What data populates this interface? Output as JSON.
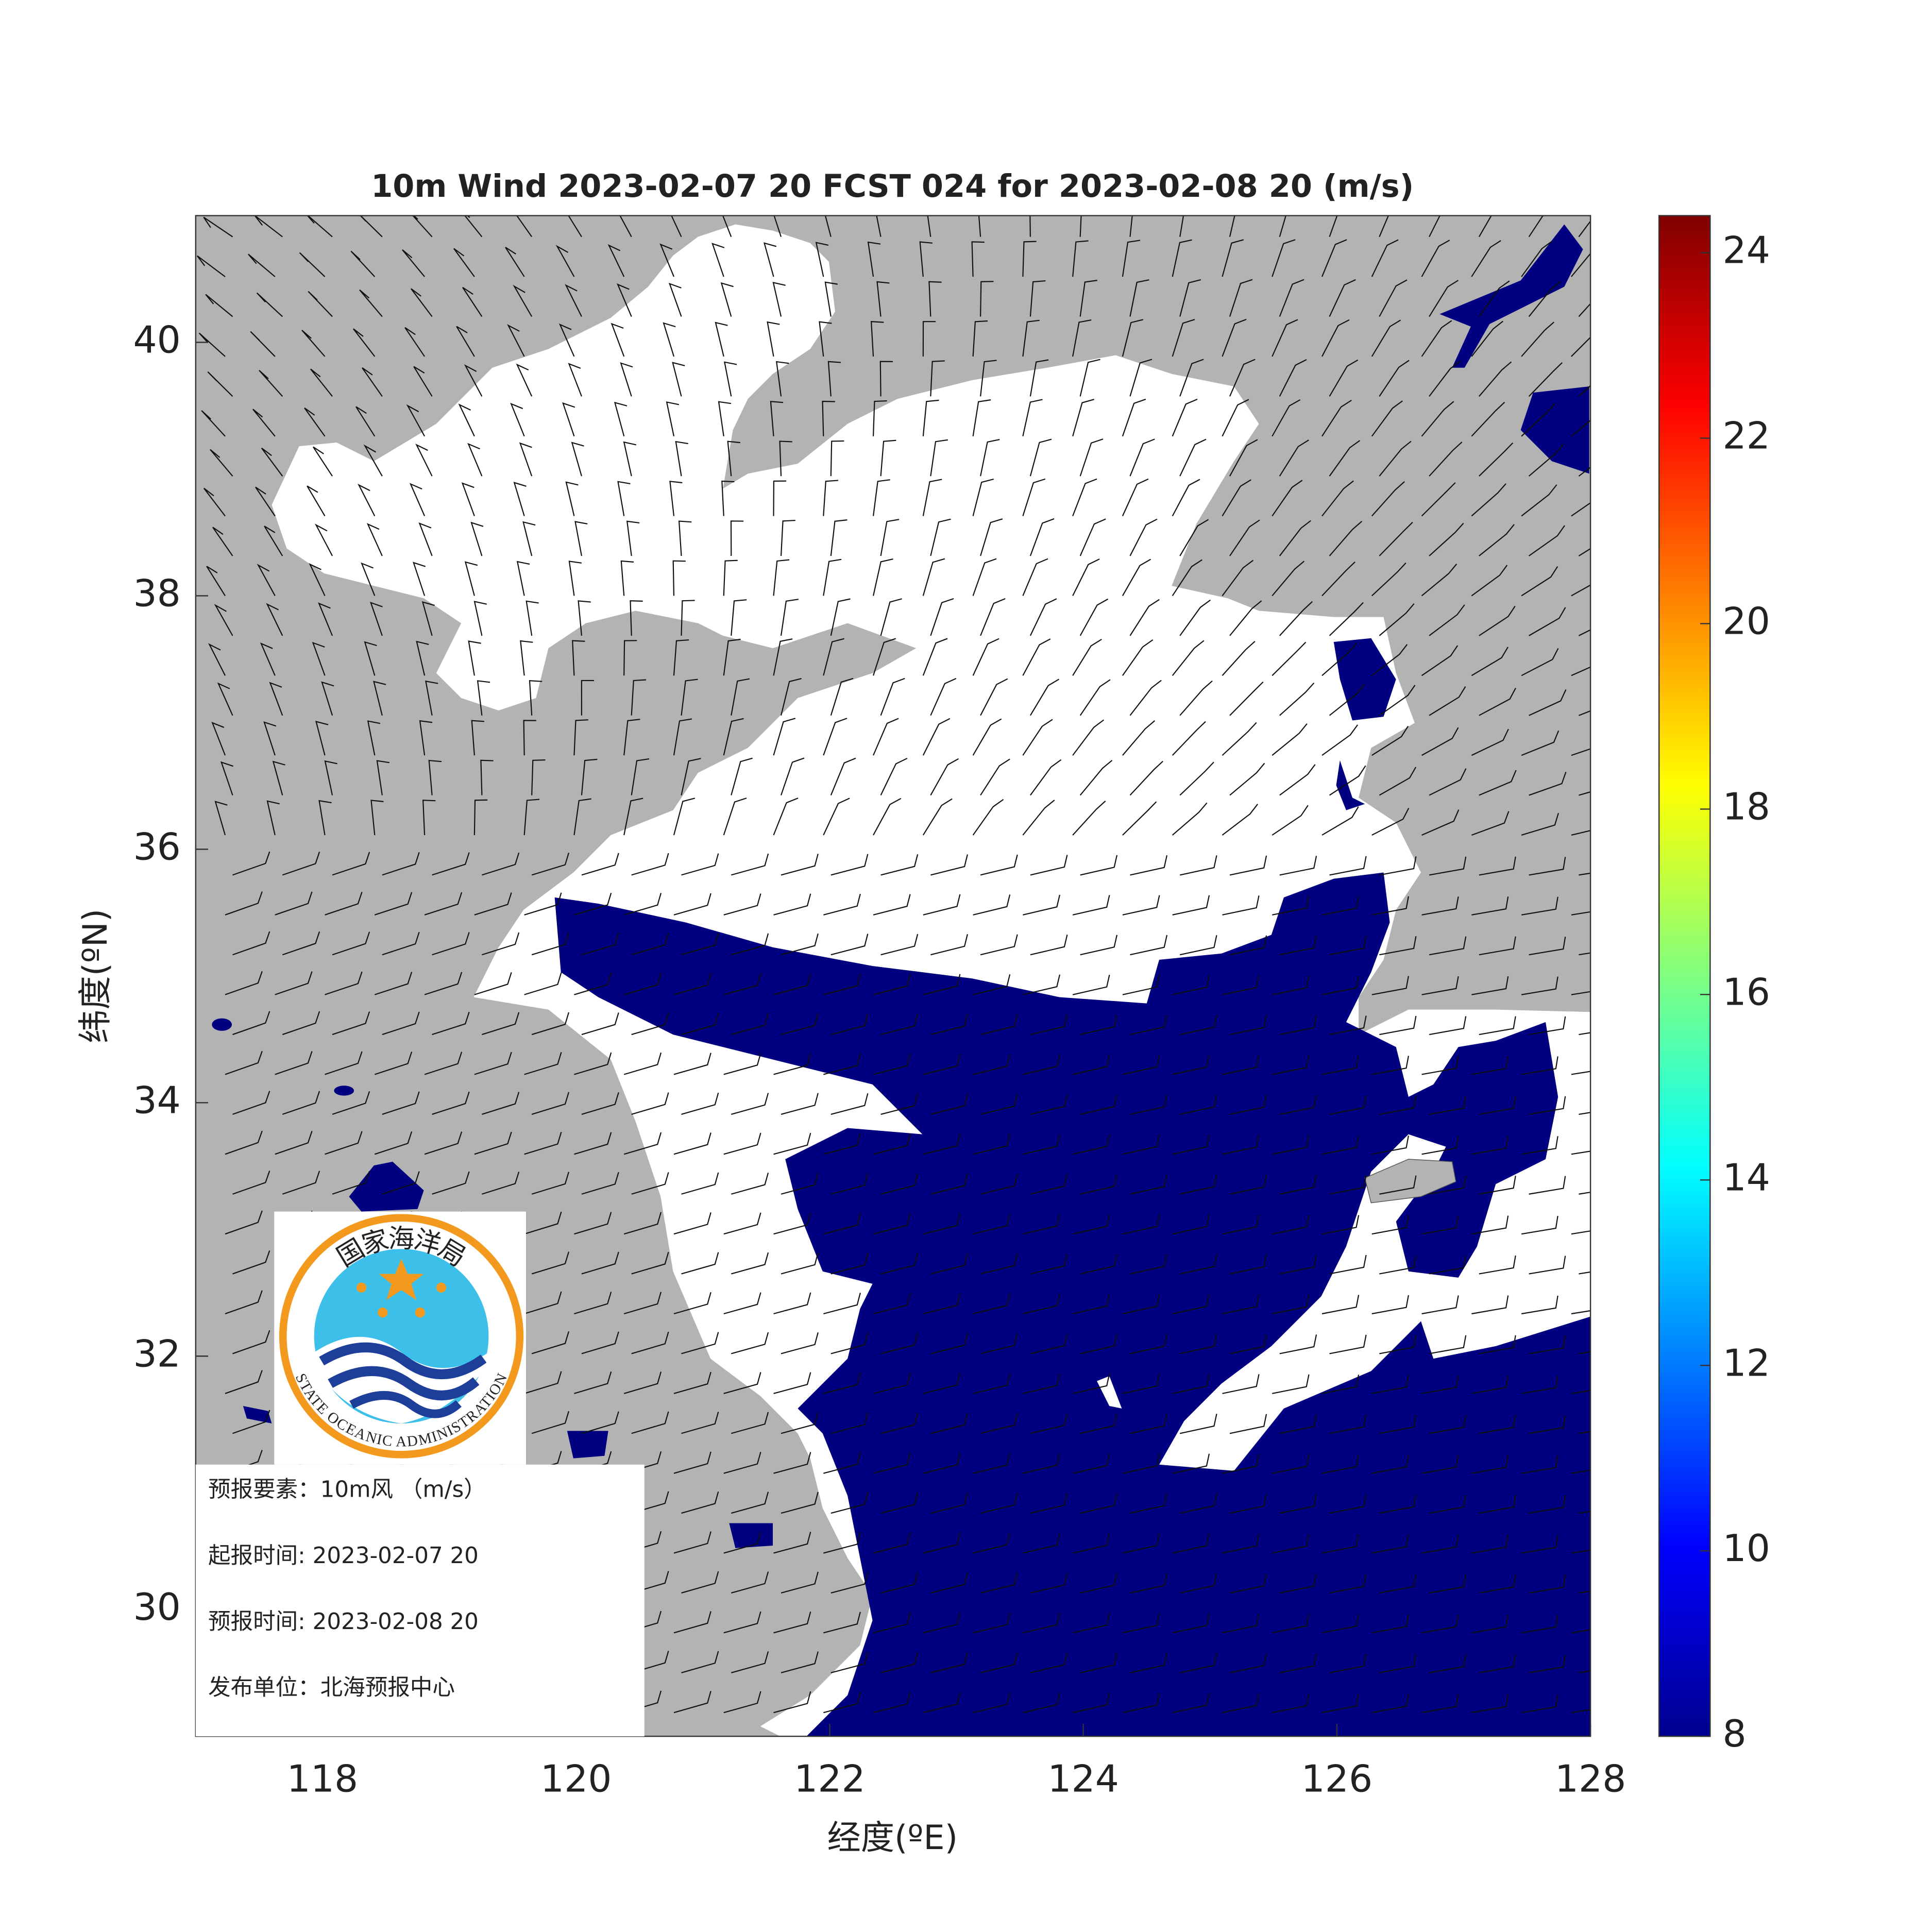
{
  "chart_data": {
    "type": "wind-map",
    "title": "10m Wind 2023-02-07 20 FCST 024 for 2023-02-08 20 (m/s)",
    "x_label": "经度(ºE)",
    "y_label": "纬度(ºN)",
    "xlim": [
      117,
      128
    ],
    "ylim": [
      29,
      41
    ],
    "xticks": [
      118,
      120,
      122,
      124,
      126,
      128
    ],
    "yticks": [
      30,
      32,
      34,
      36,
      38,
      40
    ],
    "colorbar": {
      "clim": [
        8,
        24.4
      ],
      "ticks": [
        8,
        10,
        12,
        14,
        16,
        18,
        20,
        22,
        24
      ],
      "colors": [
        "#00008f",
        "#0000ff",
        "#0080ff",
        "#00ffff",
        "#80ff80",
        "#ffff00",
        "#ff8000",
        "#ff0000",
        "#800000"
      ]
    },
    "land_color": "#b3b3b3",
    "wind_color": "#000080",
    "logo": {
      "top": "国家海洋局",
      "bottom": "STATE OCEANIC ADMINISTRATION"
    },
    "info": [
      "预报要素：10m风 （m/s）",
      "起报时间: 2023-02-07 20",
      "预报时间: 2023-02-08 20",
      "发布单位：北海预报中心"
    ]
  }
}
